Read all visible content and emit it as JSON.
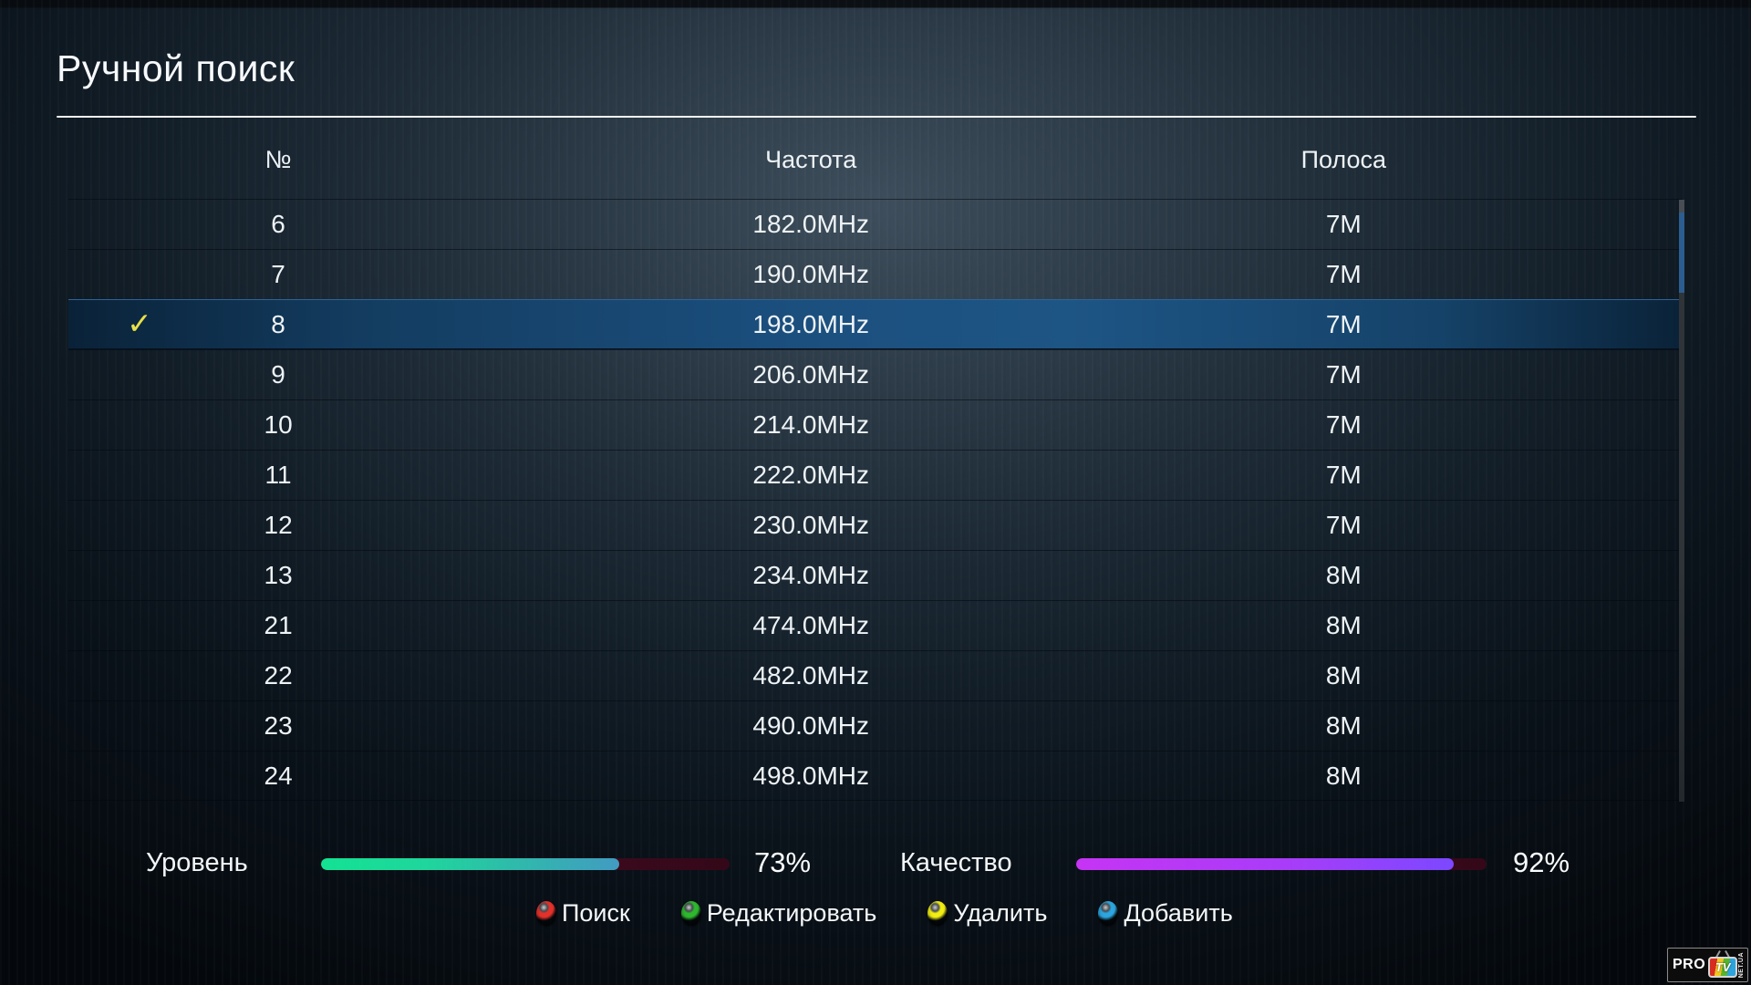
{
  "screen": {
    "title": "Ручной поиск"
  },
  "table": {
    "headers": {
      "number": "№",
      "frequency": "Частота",
      "bandwidth": "Полоса"
    },
    "selected_check_icon": "✓",
    "selected_row_color": "#1d5585",
    "check_color": "#e8e049",
    "rows": [
      {
        "number": "6",
        "frequency": "182.0MHz",
        "bandwidth": "7M",
        "selected": false
      },
      {
        "number": "7",
        "frequency": "190.0MHz",
        "bandwidth": "7M",
        "selected": false
      },
      {
        "number": "8",
        "frequency": "198.0MHz",
        "bandwidth": "7M",
        "selected": true
      },
      {
        "number": "9",
        "frequency": "206.0MHz",
        "bandwidth": "7M",
        "selected": false
      },
      {
        "number": "10",
        "frequency": "214.0MHz",
        "bandwidth": "7M",
        "selected": false
      },
      {
        "number": "11",
        "frequency": "222.0MHz",
        "bandwidth": "7M",
        "selected": false
      },
      {
        "number": "12",
        "frequency": "230.0MHz",
        "bandwidth": "7M",
        "selected": false
      },
      {
        "number": "13",
        "frequency": "234.0MHz",
        "bandwidth": "8M",
        "selected": false
      },
      {
        "number": "21",
        "frequency": "474.0MHz",
        "bandwidth": "8M",
        "selected": false
      },
      {
        "number": "22",
        "frequency": "482.0MHz",
        "bandwidth": "8M",
        "selected": false
      },
      {
        "number": "23",
        "frequency": "490.0MHz",
        "bandwidth": "8M",
        "selected": false
      },
      {
        "number": "24",
        "frequency": "498.0MHz",
        "bandwidth": "8M",
        "selected": false
      }
    ]
  },
  "signal": {
    "level": {
      "label": "Уровень",
      "value": 73,
      "value_text": "73%",
      "bar_colors": [
        "#13e293",
        "#429bc2"
      ]
    },
    "quality": {
      "label": "Качество",
      "value": 92,
      "value_text": "92%",
      "bar_colors": [
        "#c634f4",
        "#7c48ff"
      ]
    }
  },
  "button_bar": [
    {
      "name": "search",
      "color": "#e5312b",
      "label": "Поиск"
    },
    {
      "name": "edit",
      "color": "#2eb82e",
      "label": "Редактировать"
    },
    {
      "name": "delete",
      "color": "#f2ee12",
      "label": "Удалить"
    },
    {
      "name": "add",
      "color": "#2ca6e0",
      "label": "Добавить"
    }
  ],
  "logo": {
    "pro": "PRO",
    "tv": "TV",
    "domain": "NET.UA"
  }
}
